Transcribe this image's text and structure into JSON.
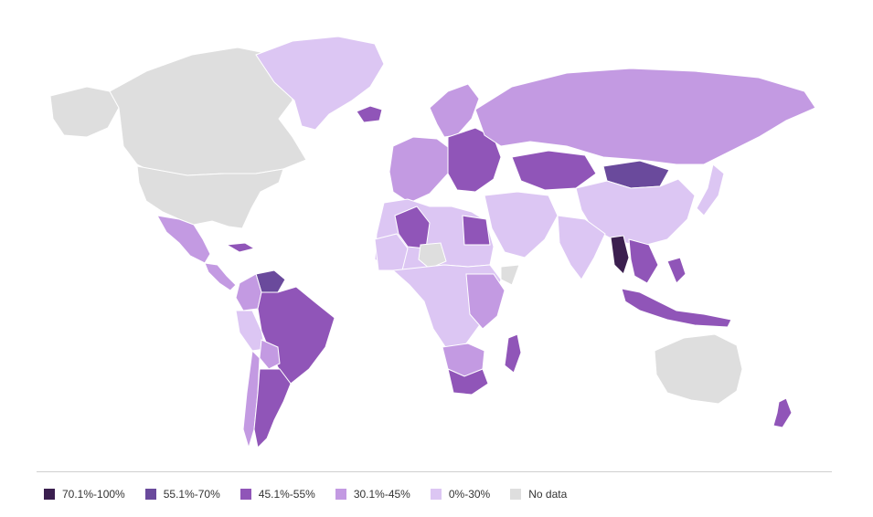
{
  "colors": {
    "c70": "#3b1f4f",
    "c55": "#6a4a9c",
    "c45": "#9055b8",
    "c30": "#c39ae2",
    "c0": "#dcc6f3",
    "nodata": "#dedede"
  },
  "legend": [
    {
      "key": "c70",
      "label": "70.1%-100%"
    },
    {
      "key": "c55",
      "label": "55.1%-70%"
    },
    {
      "key": "c45",
      "label": "45.1%-55%"
    },
    {
      "key": "c30",
      "label": "30.1%-45%"
    },
    {
      "key": "c0",
      "label": "0%-30%"
    },
    {
      "key": "nodata",
      "label": "No data"
    }
  ],
  "regions": [
    {
      "name": "canada",
      "cat": "nodata"
    },
    {
      "name": "usa",
      "cat": "nodata"
    },
    {
      "name": "alaska",
      "cat": "nodata"
    },
    {
      "name": "greenland",
      "cat": "c0"
    },
    {
      "name": "iceland",
      "cat": "c45"
    },
    {
      "name": "mexico",
      "cat": "c30"
    },
    {
      "name": "central-america",
      "cat": "c30"
    },
    {
      "name": "cuba",
      "cat": "c45"
    },
    {
      "name": "venezuela",
      "cat": "c55"
    },
    {
      "name": "colombia",
      "cat": "c30"
    },
    {
      "name": "brazil",
      "cat": "c45"
    },
    {
      "name": "peru",
      "cat": "c0"
    },
    {
      "name": "bolivia",
      "cat": "c30"
    },
    {
      "name": "argentina",
      "cat": "c45"
    },
    {
      "name": "chile",
      "cat": "c30"
    },
    {
      "name": "west-europe",
      "cat": "c30"
    },
    {
      "name": "scandinavia",
      "cat": "c30"
    },
    {
      "name": "east-europe",
      "cat": "c45"
    },
    {
      "name": "russia",
      "cat": "c30"
    },
    {
      "name": "kazakhstan",
      "cat": "c45"
    },
    {
      "name": "mongolia",
      "cat": "c55"
    },
    {
      "name": "china",
      "cat": "c0"
    },
    {
      "name": "middle-east",
      "cat": "c0"
    },
    {
      "name": "india",
      "cat": "c0"
    },
    {
      "name": "myanmar",
      "cat": "c70"
    },
    {
      "name": "southeast-asia",
      "cat": "c45"
    },
    {
      "name": "indonesia",
      "cat": "c45"
    },
    {
      "name": "japan",
      "cat": "c0"
    },
    {
      "name": "north-africa",
      "cat": "c0"
    },
    {
      "name": "libya",
      "cat": "c45"
    },
    {
      "name": "egypt",
      "cat": "c45"
    },
    {
      "name": "algeria-west",
      "cat": "c0"
    },
    {
      "name": "sahel-nodata",
      "cat": "nodata"
    },
    {
      "name": "central-africa",
      "cat": "c0"
    },
    {
      "name": "east-africa",
      "cat": "c30"
    },
    {
      "name": "southern-africa",
      "cat": "c30"
    },
    {
      "name": "south-africa",
      "cat": "c45"
    },
    {
      "name": "madagascar",
      "cat": "c45"
    },
    {
      "name": "australia",
      "cat": "nodata"
    },
    {
      "name": "new-zealand",
      "cat": "c45"
    }
  ]
}
